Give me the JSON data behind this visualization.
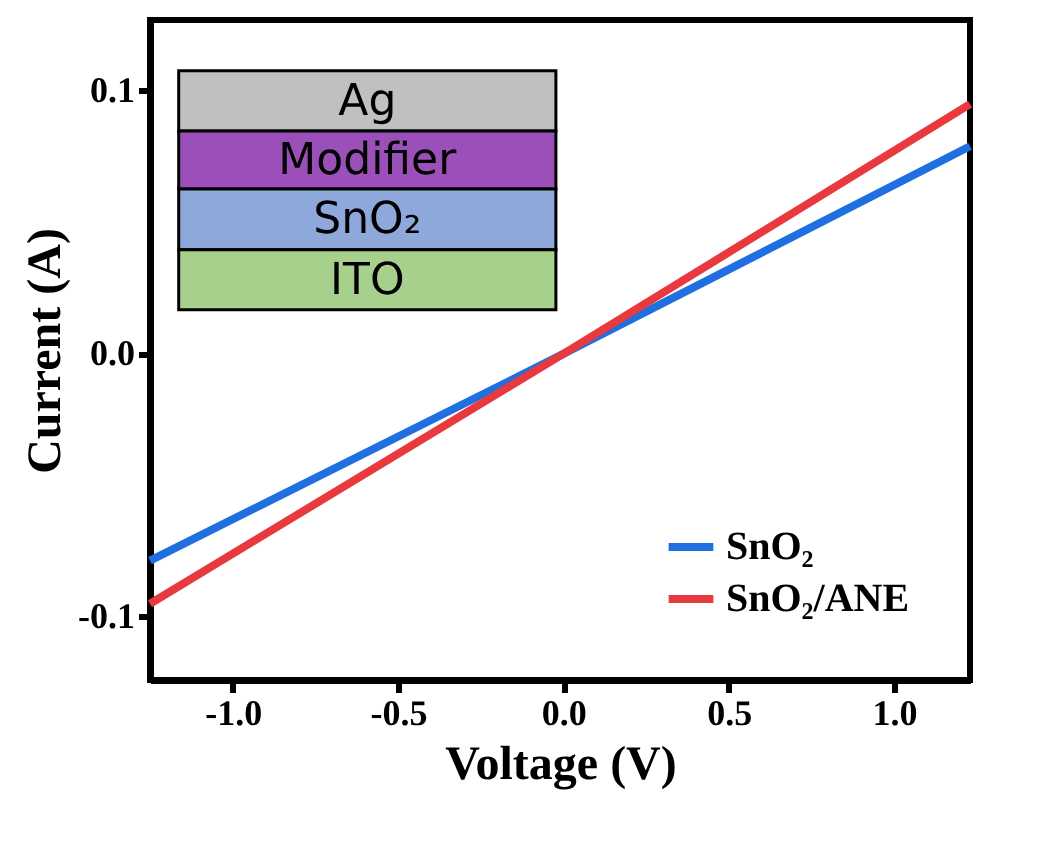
{
  "chart_data": {
    "type": "line",
    "xlabel": "Voltage (V)",
    "ylabel": "Current (A)",
    "xlim": [
      -1.25,
      1.23
    ],
    "xticks": [
      {
        "value": -1,
        "label": "-1.0"
      },
      -0.5,
      {
        "value": 0,
        "label": "0.0"
      },
      0.5,
      {
        "value": 1,
        "label": "1.0"
      }
    ],
    "ylim": [
      -0.124,
      0.127
    ],
    "yticks": [
      -0.1,
      {
        "value": 0,
        "label": "0.0"
      },
      0.1
    ],
    "series": [
      {
        "name": "SnO₂",
        "color": "#1f6fe0",
        "x": [
          -1.25,
          0,
          1.23
        ],
        "values": [
          -0.0786,
          0,
          0.079
        ]
      },
      {
        "name": "SnO₂/ANE",
        "color": "#e8393f",
        "x": [
          -1.25,
          0,
          1.23
        ],
        "values": [
          -0.095,
          0,
          0.095
        ]
      }
    ],
    "annotations": [
      "Ag",
      "Modifier",
      "SnO₂",
      "ITO"
    ],
    "legend": "bottom right",
    "grid": false,
    "line_style": "solid",
    "marker": "none"
  }
}
